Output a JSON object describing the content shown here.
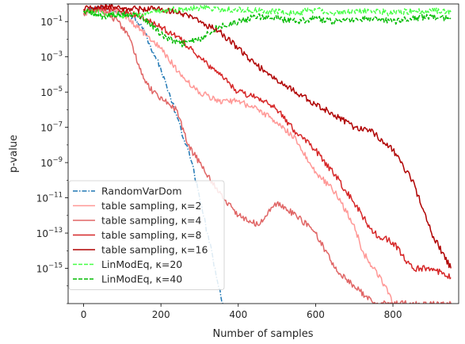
{
  "chart_data": {
    "type": "line",
    "xlabel": "Number of samples",
    "ylabel": "p-value",
    "y_scale": "log",
    "xlim": [
      -40,
      970
    ],
    "ylim": [
      1e-17,
      1
    ],
    "x_ticks": [
      0,
      200,
      400,
      600,
      800
    ],
    "x_tick_labels": [
      "0",
      "200",
      "400",
      "600",
      "800"
    ],
    "y_ticks": [
      1e-15,
      1e-13,
      1e-11,
      1e-09,
      1e-07,
      1e-05,
      0.001,
      0.1
    ],
    "y_tick_labels": [
      {
        "base": "10",
        "exp": "−15"
      },
      {
        "base": "10",
        "exp": "−13"
      },
      {
        "base": "10",
        "exp": "−11"
      },
      {
        "base": "10",
        "exp": "−9"
      },
      {
        "base": "10",
        "exp": "−7"
      },
      {
        "base": "10",
        "exp": "−5"
      },
      {
        "base": "10",
        "exp": "−3"
      },
      {
        "base": "10",
        "exp": "−1"
      }
    ],
    "grid": false,
    "legend_position": "lower-left",
    "series": [
      {
        "name": "RandomVarDom",
        "color": "#1f77b4",
        "dash": "dashdot",
        "x": [
          0,
          20,
          40,
          60,
          80,
          100,
          120,
          140,
          160,
          180,
          200,
          220,
          240,
          260,
          280,
          300,
          320,
          340,
          360
        ],
        "y": [
          0.3,
          0.5,
          0.6,
          0.45,
          0.4,
          0.3,
          0.25,
          0.1,
          0.02,
          0.002,
          0.0002,
          1e-05,
          5e-07,
          2e-08,
          1e-09,
          1e-11,
          1e-13,
          1e-15,
          1e-17
        ]
      },
      {
        "name": "table sampling, κ=2",
        "color": "#ff9896",
        "dash": "solid",
        "x": [
          0,
          50,
          100,
          150,
          200,
          250,
          300,
          350,
          400,
          450,
          500,
          550,
          600,
          650,
          700,
          720,
          750,
          780,
          800
        ],
        "y": [
          0.3,
          0.5,
          0.3,
          0.03,
          0.003,
          0.0001,
          1e-05,
          3e-06,
          3e-06,
          1e-06,
          2e-07,
          2e-08,
          3e-10,
          2e-11,
          3e-13,
          1e-14,
          1e-15,
          1e-16,
          1e-17
        ]
      },
      {
        "name": "table sampling, κ=4",
        "color": "#e06666",
        "dash": "solid",
        "x": [
          0,
          30,
          60,
          90,
          120,
          150,
          180,
          210,
          240,
          270,
          300,
          350,
          400,
          450,
          500,
          550,
          600,
          650,
          700,
          750,
          800,
          850,
          900,
          950
        ],
        "y": [
          0.3,
          0.4,
          0.3,
          0.1,
          0.01,
          0.0001,
          1e-05,
          3e-06,
          1e-06,
          1e-08,
          1e-09,
          2e-11,
          1e-12,
          3e-13,
          5e-12,
          1e-12,
          1e-13,
          1e-15,
          1e-16,
          1e-17,
          1e-17,
          1e-17,
          1e-17,
          1e-17
        ]
      },
      {
        "name": "table sampling, κ=8",
        "color": "#d62728",
        "dash": "solid",
        "x": [
          0,
          50,
          100,
          150,
          200,
          250,
          300,
          350,
          400,
          450,
          500,
          550,
          600,
          650,
          700,
          750,
          800,
          850,
          900,
          950
        ],
        "y": [
          0.4,
          0.6,
          0.4,
          0.2,
          0.05,
          0.01,
          0.001,
          0.0001,
          1e-05,
          5e-06,
          1e-06,
          5e-08,
          5e-09,
          2e-10,
          5e-12,
          1e-13,
          3e-14,
          1e-15,
          1e-15,
          3e-16
        ]
      },
      {
        "name": "table sampling, κ=16",
        "color": "#b00000",
        "dash": "solid",
        "x": [
          0,
          50,
          100,
          150,
          200,
          250,
          300,
          350,
          400,
          450,
          500,
          550,
          600,
          650,
          700,
          750,
          800,
          850,
          900,
          950
        ],
        "y": [
          0.5,
          0.8,
          0.6,
          0.5,
          0.5,
          0.3,
          0.1,
          0.03,
          0.003,
          0.0003,
          5e-05,
          1e-05,
          2e-06,
          5e-07,
          1e-07,
          5e-08,
          5e-09,
          1e-10,
          1e-13,
          1e-15
        ]
      },
      {
        "name": "LinModEq, κ=20",
        "color": "#44ff44",
        "dash": "dashed",
        "x": [
          0,
          50,
          100,
          150,
          200,
          250,
          300,
          350,
          400,
          450,
          500,
          550,
          600,
          650,
          700,
          750,
          800,
          850,
          900,
          950
        ],
        "y": [
          0.4,
          0.3,
          0.2,
          0.3,
          0.4,
          0.5,
          0.6,
          0.5,
          0.5,
          0.4,
          0.4,
          0.3,
          0.5,
          0.3,
          0.4,
          0.4,
          0.3,
          0.4,
          0.4,
          0.35
        ]
      },
      {
        "name": "LinModEq, κ=40",
        "color": "#00bb00",
        "dash": "dashed",
        "x": [
          0,
          50,
          100,
          150,
          200,
          250,
          300,
          350,
          400,
          450,
          500,
          550,
          600,
          650,
          700,
          750,
          800,
          850,
          900,
          950
        ],
        "y": [
          0.4,
          0.2,
          0.3,
          0.2,
          0.02,
          0.005,
          0.01,
          0.05,
          0.1,
          0.2,
          0.15,
          0.1,
          0.15,
          0.1,
          0.12,
          0.15,
          0.1,
          0.15,
          0.2,
          0.15
        ]
      }
    ]
  }
}
